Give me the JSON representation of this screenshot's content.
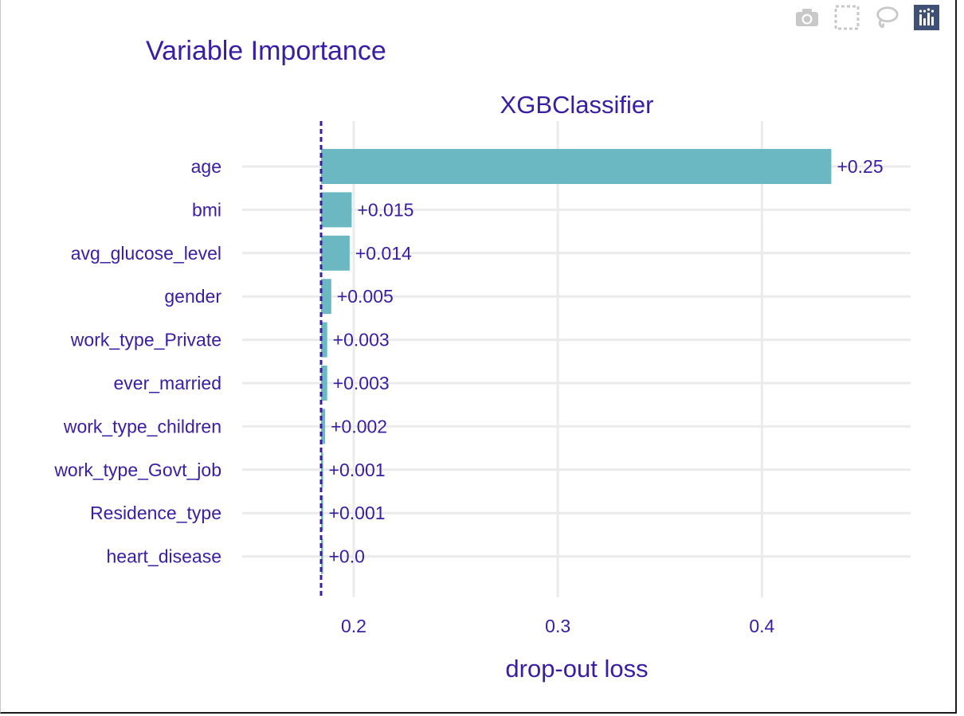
{
  "toolbar": {
    "icons": [
      "camera-icon",
      "box-select-icon",
      "lasso-select-icon",
      "plotly-logo-icon"
    ]
  },
  "chart_data": {
    "type": "bar",
    "orientation": "horizontal",
    "title": "Variable Importance",
    "subtitle": "XGBClassifier",
    "xlabel": "drop-out loss",
    "ylabel": "",
    "baseline": 0.184,
    "xlim": [
      0.184,
      0.435
    ],
    "xticks": [
      0.2,
      0.3,
      0.4
    ],
    "xtick_labels": [
      "0.2",
      "0.3",
      "0.4"
    ],
    "grid": true,
    "bar_color": "#6bb8c2",
    "text_color": "#371ea3",
    "categories": [
      "age",
      "bmi",
      "avg_glucose_level",
      "gender",
      "work_type_Private",
      "ever_married",
      "work_type_children",
      "work_type_Govt_job",
      "Residence_type",
      "heart_disease"
    ],
    "values": [
      0.25,
      0.015,
      0.014,
      0.005,
      0.003,
      0.003,
      0.002,
      0.001,
      0.001,
      0.0
    ],
    "labels": [
      "+0.25",
      "+0.015",
      "+0.014",
      "+0.005",
      "+0.003",
      "+0.003",
      "+0.002",
      "+0.001",
      "+0.001",
      "+0.0"
    ]
  }
}
